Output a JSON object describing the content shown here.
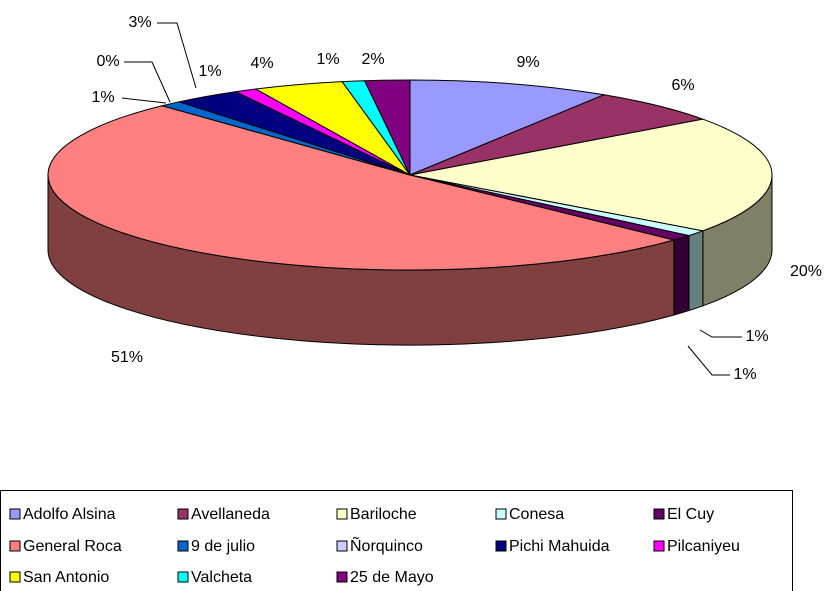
{
  "chart_data": {
    "type": "pie",
    "categories": [
      "Adolfo Alsina",
      "Avellaneda",
      "Bariloche",
      "Conesa",
      "El Cuy",
      "General Roca",
      "9 de julio",
      "Ñorquinco",
      "Pichi Mahuida",
      "Pilcaniyeu",
      "San Antonio",
      "Valcheta",
      "25 de Mayo"
    ],
    "values": [
      9,
      6,
      20,
      1,
      1,
      51,
      1,
      0,
      3,
      1,
      4,
      1,
      2
    ],
    "value_labels": [
      "9%",
      "6%",
      "20%",
      "1%",
      "1%",
      "51%",
      "1%",
      "0%",
      "3%",
      "1%",
      "4%",
      "1%",
      "2%"
    ],
    "colors": [
      "#9999ff",
      "#993366",
      "#ffffcc",
      "#ccffff",
      "#660066",
      "#ff8080",
      "#0066cc",
      "#ccccff",
      "#000080",
      "#ff00ff",
      "#ffff00",
      "#00ffff",
      "#800080"
    ],
    "legend": "bottom"
  }
}
